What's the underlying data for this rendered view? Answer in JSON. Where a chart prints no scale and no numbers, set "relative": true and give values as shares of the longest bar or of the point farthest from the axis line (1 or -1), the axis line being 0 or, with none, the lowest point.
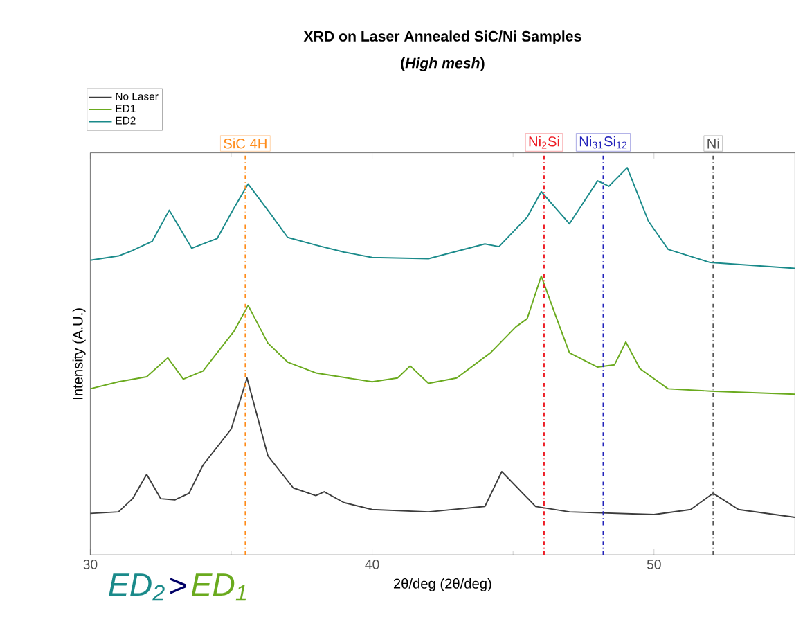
{
  "chart_data": {
    "type": "line",
    "title": "XRD on Laser Annealed SiC/Ni Samples",
    "subtitle": "(*High mesh*)",
    "xlabel": "2θ/deg (2θ/deg)",
    "ylabel": "Intensity (A.U.)",
    "xlim": [
      30,
      55
    ],
    "xticks": [
      30,
      40,
      50
    ],
    "relative": true,
    "legend": "top left",
    "marker": "none",
    "series": [
      {
        "name": "No Laser",
        "color": "#3c3c3c",
        "x": [
          30,
          31,
          31.5,
          32.0,
          32.5,
          33,
          33.5,
          34,
          35,
          35.56,
          36.3,
          37.2,
          38,
          38.3,
          39,
          40,
          42,
          44,
          44.6,
          45.8,
          47,
          50,
          51.3,
          52.1,
          53,
          55
        ],
        "values": [
          0.107,
          0.111,
          0.145,
          0.208,
          0.145,
          0.142,
          0.159,
          0.232,
          0.325,
          0.457,
          0.256,
          0.173,
          0.153,
          0.163,
          0.135,
          0.117,
          0.111,
          0.125,
          0.215,
          0.125,
          0.111,
          0.104,
          0.117,
          0.159,
          0.117,
          0.097
        ]
      },
      {
        "name": "ED1",
        "color": "#6aaa1e",
        "x": [
          30,
          31,
          32,
          32.75,
          33.3,
          34,
          35.1,
          35.6,
          36.3,
          37,
          38,
          40,
          40.9,
          41.35,
          42,
          43,
          44.2,
          45.1,
          45.5,
          46.0,
          46.5,
          47,
          48,
          48.6,
          49.0,
          49.5,
          50.5,
          52,
          55
        ],
        "values": [
          0.429,
          0.447,
          0.46,
          0.509,
          0.454,
          0.475,
          0.578,
          0.644,
          0.547,
          0.498,
          0.47,
          0.447,
          0.457,
          0.488,
          0.443,
          0.457,
          0.522,
          0.589,
          0.61,
          0.72,
          0.62,
          0.522,
          0.485,
          0.491,
          0.55,
          0.481,
          0.429,
          0.423,
          0.415
        ]
      },
      {
        "name": "ED2",
        "color": "#1a8a8a",
        "x": [
          30,
          31,
          31.5,
          32.2,
          32.8,
          33.6,
          34.5,
          35.1,
          35.6,
          36.4,
          37,
          38,
          39,
          40,
          42,
          44,
          44.5,
          45.5,
          46.0,
          47.0,
          48.0,
          48.4,
          49.05,
          49.8,
          50.5,
          52,
          55
        ],
        "values": [
          0.761,
          0.772,
          0.786,
          0.81,
          0.89,
          0.792,
          0.817,
          0.896,
          0.958,
          0.88,
          0.82,
          0.8,
          0.782,
          0.768,
          0.765,
          0.803,
          0.796,
          0.872,
          0.938,
          0.855,
          0.966,
          0.952,
          1,
          0.862,
          0.789,
          0.755,
          0.74
        ]
      }
    ],
    "ref_lines": [
      {
        "axis": "x",
        "value": 35.5,
        "label": "SiC 4H",
        "color": "#ff8c1a",
        "line_style": "dashed"
      },
      {
        "axis": "x",
        "value": 46.1,
        "label": "Ni$_{2}$Si",
        "color": "#ee1c24",
        "line_style": "dashed"
      },
      {
        "axis": "x",
        "value": 48.2,
        "label": "Ni$_{31}$Si$_{12}$",
        "color": "#2222bb",
        "line_style": "dashed"
      },
      {
        "axis": "x",
        "value": 52.1,
        "label": "Ni",
        "color": "#555555",
        "line_style": "dashed"
      }
    ],
    "annotations": [
      "*ED$_{2}$*",
      ">",
      "*ED$_{1}$*"
    ]
  }
}
